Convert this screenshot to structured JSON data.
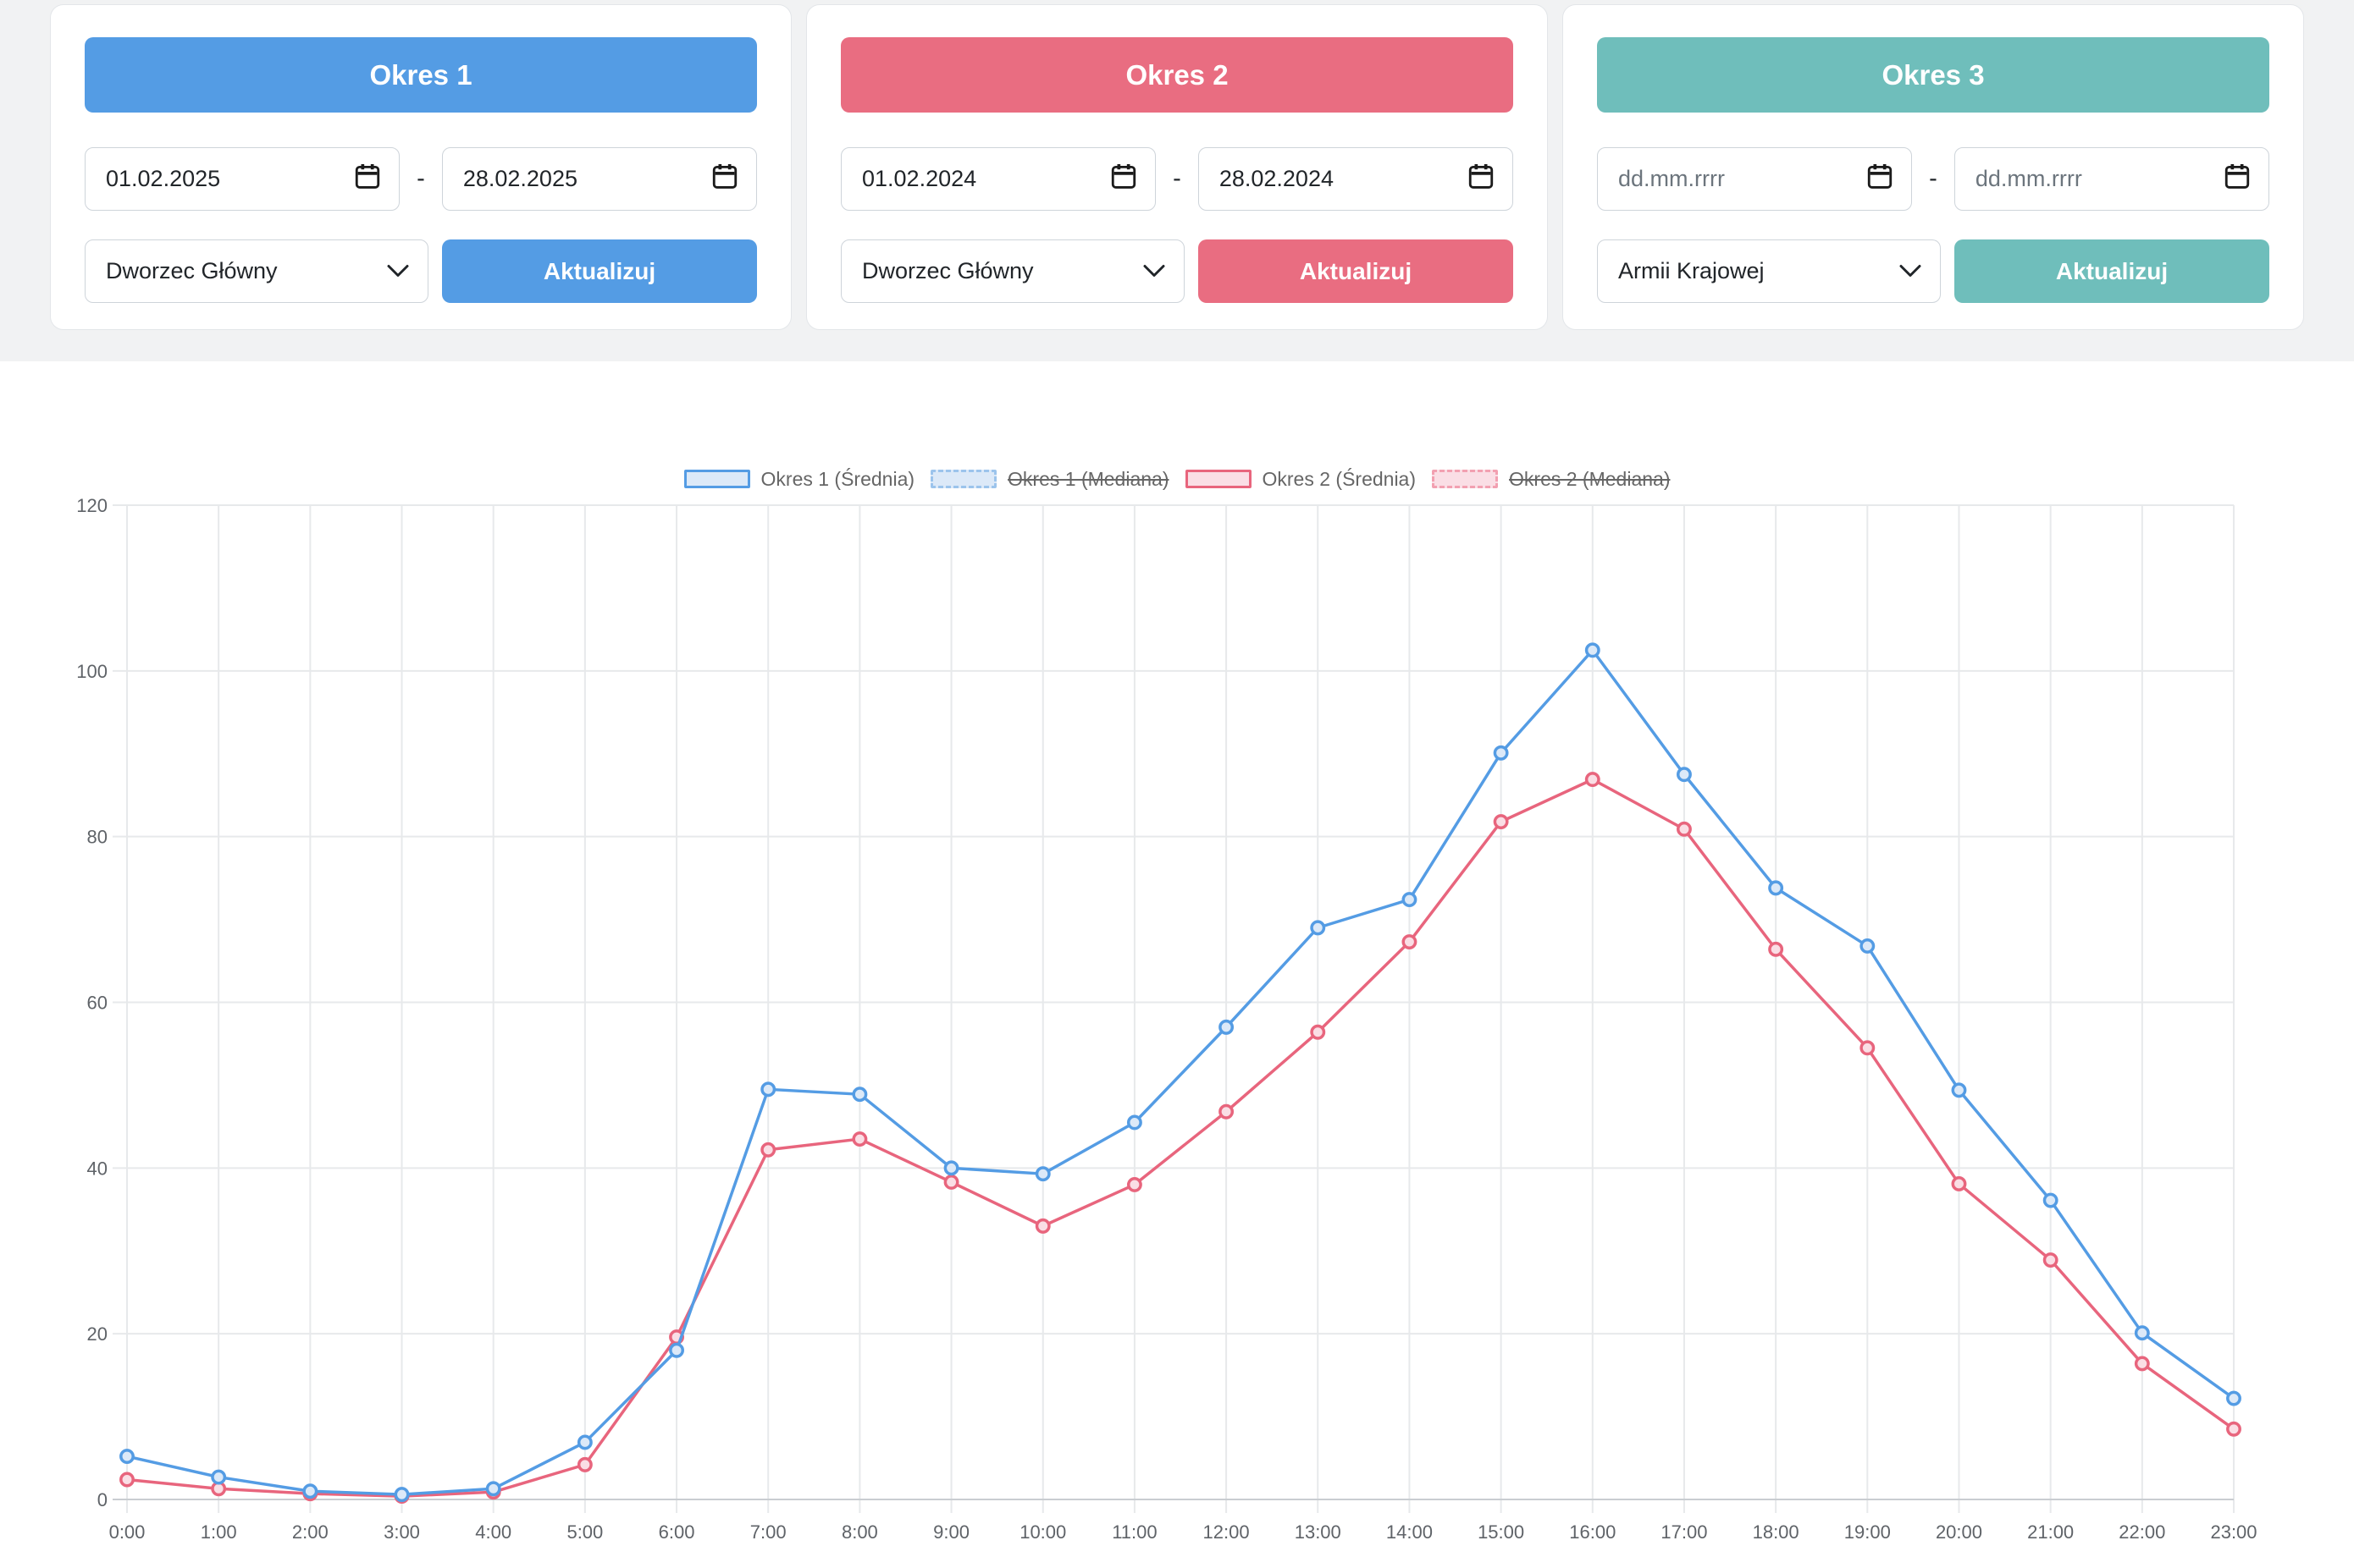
{
  "ui": {
    "date_separator": "-"
  },
  "theme": {
    "top_background": "#f1f2f3",
    "grid_color": "#e7e9eb",
    "axis_color": "#c9cdd1",
    "tick_text_color": "#5f6368"
  },
  "cards": [
    {
      "title": "Okres 1",
      "color": "#549ce4",
      "date_from": "01.02.2025",
      "date_to": "28.02.2025",
      "station": "Dworzec Główny",
      "update_label": "Aktualizuj"
    },
    {
      "title": "Okres 2",
      "color": "#e96d81",
      "date_from": "01.02.2024",
      "date_to": "28.02.2024",
      "station": "Dworzec Główny",
      "update_label": "Aktualizuj"
    },
    {
      "title": "Okres 3",
      "color": "#6fbebb",
      "date_from": "dd.mm.rrrr",
      "date_to": "dd.mm.rrrr",
      "station": "Armii Krajowej",
      "update_label": "Aktualizuj"
    }
  ],
  "chart_data": {
    "type": "line",
    "categories": [
      "0:00",
      "1:00",
      "2:00",
      "3:00",
      "4:00",
      "5:00",
      "6:00",
      "7:00",
      "8:00",
      "9:00",
      "10:00",
      "11:00",
      "12:00",
      "13:00",
      "14:00",
      "15:00",
      "16:00",
      "17:00",
      "18:00",
      "19:00",
      "20:00",
      "21:00",
      "22:00",
      "23:00"
    ],
    "series": [
      {
        "name": "Okres 1 (Średnia)",
        "color": "#549ce4",
        "point_fill": "#dce9f8",
        "values": [
          5.2,
          2.7,
          1.0,
          0.6,
          1.3,
          6.9,
          18.0,
          49.5,
          48.9,
          40.0,
          39.3,
          45.5,
          57.0,
          69.0,
          72.4,
          90.1,
          102.5,
          87.5,
          73.8,
          66.8,
          49.4,
          36.1,
          20.1,
          12.2
        ]
      },
      {
        "name": "Okres 2 (Średnia)",
        "color": "#e8657d",
        "point_fill": "#fadee5",
        "values": [
          2.4,
          1.3,
          0.7,
          0.4,
          0.9,
          4.2,
          19.6,
          42.2,
          43.5,
          38.3,
          33.0,
          38.0,
          46.8,
          56.4,
          67.3,
          81.8,
          86.9,
          80.9,
          66.4,
          54.5,
          38.1,
          28.9,
          16.4,
          8.5
        ]
      }
    ],
    "legend": [
      {
        "label": "Okres 1 (Średnia)",
        "color": "#549ce4",
        "fill": "#dce9f8",
        "style": "solid",
        "hidden": false
      },
      {
        "label": "Okres 1 (Mediana)",
        "color": "#9cc4ec",
        "fill": "#dce9f8",
        "style": "dashed",
        "hidden": true
      },
      {
        "label": "Okres 2 (Średnia)",
        "color": "#e8657d",
        "fill": "#fadee5",
        "style": "solid",
        "hidden": false
      },
      {
        "label": "Okres 2 (Mediana)",
        "color": "#f2a0b1",
        "fill": "#fadee5",
        "style": "dashed",
        "hidden": true
      }
    ],
    "title": "",
    "xlabel": "",
    "ylabel": "",
    "ylim": [
      0,
      120
    ],
    "yticks": [
      0,
      20,
      40,
      60,
      80,
      100,
      120
    ],
    "grid": true,
    "legend_position": "top"
  }
}
